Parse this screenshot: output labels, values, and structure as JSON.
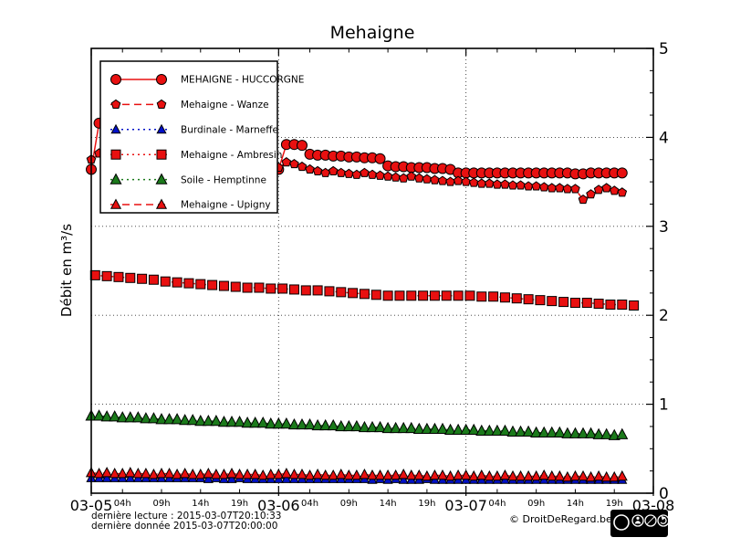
{
  "title": "Mehaigne",
  "ylabel": "Débit en m³/s",
  "footer": {
    "line1": "dernière lecture : 2015-03-07T20:10:33",
    "line2": "dernière donnée  2015-03-07T20:00:00",
    "copyright": "© DroitDeRegard.be",
    "cc_badge": "cc",
    "cc_labels": [
      "BY",
      "NC",
      "SA"
    ]
  },
  "chart_data": {
    "type": "line",
    "title": "Mehaigne",
    "ylabel": "Débit en m³/s",
    "ylim": [
      0,
      5
    ],
    "xlim_hours": [
      0,
      72
    ],
    "x_origin": "2015-03-05T00:00",
    "grid": {
      "h_values": [
        1,
        2,
        3,
        4
      ],
      "v_hours": [
        24,
        48
      ]
    },
    "y_ticks": [
      {
        "v": 0,
        "label": "0"
      },
      {
        "v": 1,
        "label": "1"
      },
      {
        "v": 2,
        "label": "2"
      },
      {
        "v": 3,
        "label": "3"
      },
      {
        "v": 4,
        "label": "4"
      },
      {
        "v": 5,
        "label": "5"
      }
    ],
    "y_minor_step": 0.25,
    "x_day_ticks": [
      {
        "t": 0,
        "label": "03-05"
      },
      {
        "t": 24,
        "label": "03-06"
      },
      {
        "t": 48,
        "label": "03-07"
      },
      {
        "t": 72,
        "label": "03-08"
      }
    ],
    "x_hour_ticks": [
      {
        "t": 4,
        "label": "04h"
      },
      {
        "t": 9,
        "label": "09h"
      },
      {
        "t": 14,
        "label": "14h"
      },
      {
        "t": 19,
        "label": "19h"
      },
      {
        "t": 28,
        "label": "04h"
      },
      {
        "t": 33,
        "label": "09h"
      },
      {
        "t": 38,
        "label": "14h"
      },
      {
        "t": 43,
        "label": "19h"
      },
      {
        "t": 52,
        "label": "04h"
      },
      {
        "t": 57,
        "label": "09h"
      },
      {
        "t": 62,
        "label": "14h"
      },
      {
        "t": 67,
        "label": "19h"
      }
    ],
    "legend_position": "upper left",
    "series": [
      {
        "name": "MEHAIGNE - HUCCORGNE",
        "color": "#e81010",
        "line": "solid",
        "marker": "circle",
        "marker_size": 5.5,
        "hours_start": 0,
        "hours_step": 1,
        "values": [
          3.64,
          4.16,
          4.0,
          3.9,
          3.88,
          3.87,
          3.86,
          3.85,
          3.84,
          3.83,
          3.82,
          3.81,
          3.8,
          3.79,
          3.78,
          3.77,
          3.76,
          3.75,
          3.74,
          3.73,
          3.72,
          3.71,
          3.7,
          3.68,
          3.64,
          3.92,
          3.92,
          3.91,
          3.81,
          3.8,
          3.8,
          3.79,
          3.79,
          3.78,
          3.78,
          3.77,
          3.77,
          3.76,
          3.68,
          3.67,
          3.67,
          3.66,
          3.66,
          3.66,
          3.65,
          3.65,
          3.64,
          3.6,
          3.6,
          3.6,
          3.6,
          3.6,
          3.6,
          3.6,
          3.6,
          3.6,
          3.6,
          3.6,
          3.6,
          3.6,
          3.6,
          3.6,
          3.59,
          3.59,
          3.6,
          3.6,
          3.6,
          3.6,
          3.6
        ]
      },
      {
        "name": "Mehaigne - Wanze",
        "color": "#e81010",
        "line": "dashed",
        "marker": "pentagon",
        "marker_size": 5,
        "hours_start": 0,
        "hours_step": 1,
        "values": [
          3.75,
          3.82,
          3.78,
          3.76,
          3.75,
          3.74,
          3.74,
          3.73,
          3.73,
          3.72,
          3.72,
          3.71,
          3.71,
          3.7,
          3.7,
          3.7,
          3.69,
          3.69,
          3.68,
          3.68,
          3.68,
          3.67,
          3.67,
          3.67,
          3.66,
          3.72,
          3.7,
          3.67,
          3.64,
          3.62,
          3.6,
          3.62,
          3.6,
          3.59,
          3.58,
          3.6,
          3.58,
          3.57,
          3.56,
          3.55,
          3.54,
          3.56,
          3.54,
          3.53,
          3.52,
          3.51,
          3.5,
          3.51,
          3.5,
          3.49,
          3.48,
          3.48,
          3.47,
          3.47,
          3.46,
          3.46,
          3.45,
          3.45,
          3.44,
          3.43,
          3.43,
          3.42,
          3.42,
          3.3,
          3.36,
          3.41,
          3.43,
          3.4,
          3.38
        ]
      },
      {
        "name": "Burdinale - Marneffe",
        "color": "#0010c8",
        "line": "dotted",
        "marker": "triangle",
        "marker_size": 5,
        "hours_start": 0,
        "hours_step": 1,
        "values": [
          0.17,
          0.17,
          0.17,
          0.17,
          0.17,
          0.17,
          0.17,
          0.17,
          0.17,
          0.17,
          0.17,
          0.17,
          0.17,
          0.17,
          0.17,
          0.16,
          0.17,
          0.16,
          0.16,
          0.17,
          0.16,
          0.16,
          0.16,
          0.16,
          0.16,
          0.16,
          0.16,
          0.16,
          0.16,
          0.16,
          0.16,
          0.16,
          0.16,
          0.16,
          0.16,
          0.16,
          0.15,
          0.16,
          0.15,
          0.16,
          0.15,
          0.15,
          0.15,
          0.16,
          0.15,
          0.15,
          0.15,
          0.15,
          0.15,
          0.15,
          0.15,
          0.15,
          0.15,
          0.15,
          0.15,
          0.15,
          0.15,
          0.15,
          0.15,
          0.15,
          0.15,
          0.15,
          0.15,
          0.15,
          0.15,
          0.15,
          0.15,
          0.15,
          0.15
        ]
      },
      {
        "name": "Mehaigne - Ambresin",
        "color": "#e81010",
        "line": "dotted",
        "marker": "square",
        "marker_size": 5,
        "hours_start": 0.5,
        "hours_step": 1.5,
        "values": [
          2.45,
          2.44,
          2.43,
          2.42,
          2.41,
          2.4,
          2.38,
          2.37,
          2.36,
          2.35,
          2.34,
          2.33,
          2.32,
          2.31,
          2.31,
          2.3,
          2.3,
          2.29,
          2.28,
          2.28,
          2.27,
          2.26,
          2.25,
          2.24,
          2.23,
          2.22,
          2.22,
          2.22,
          2.22,
          2.22,
          2.22,
          2.22,
          2.22,
          2.21,
          2.21,
          2.2,
          2.19,
          2.18,
          2.17,
          2.16,
          2.15,
          2.14,
          2.14,
          2.13,
          2.12,
          2.12,
          2.11
        ]
      },
      {
        "name": "Soile - Hemptinne",
        "color": "#1b7a1b",
        "line": "dotted",
        "marker": "triangle",
        "marker_size": 6,
        "hours_start": 0,
        "hours_step": 1,
        "values": [
          0.87,
          0.87,
          0.86,
          0.86,
          0.85,
          0.85,
          0.85,
          0.84,
          0.84,
          0.83,
          0.83,
          0.83,
          0.82,
          0.82,
          0.81,
          0.81,
          0.81,
          0.8,
          0.8,
          0.8,
          0.79,
          0.79,
          0.79,
          0.78,
          0.78,
          0.78,
          0.77,
          0.77,
          0.77,
          0.76,
          0.76,
          0.76,
          0.75,
          0.75,
          0.75,
          0.74,
          0.74,
          0.74,
          0.73,
          0.73,
          0.73,
          0.73,
          0.72,
          0.72,
          0.72,
          0.72,
          0.71,
          0.71,
          0.71,
          0.71,
          0.7,
          0.7,
          0.7,
          0.7,
          0.69,
          0.69,
          0.69,
          0.68,
          0.68,
          0.68,
          0.68,
          0.67,
          0.67,
          0.67,
          0.67,
          0.66,
          0.66,
          0.65,
          0.66
        ]
      },
      {
        "name": "Mehaigne - Upigny",
        "color": "#e81010",
        "line": "dashed",
        "marker": "triangle",
        "marker_size": 5.5,
        "hours_start": 0,
        "hours_step": 1,
        "values": [
          0.23,
          0.22,
          0.23,
          0.22,
          0.22,
          0.23,
          0.22,
          0.22,
          0.21,
          0.22,
          0.22,
          0.21,
          0.22,
          0.21,
          0.21,
          0.22,
          0.21,
          0.21,
          0.22,
          0.21,
          0.21,
          0.21,
          0.2,
          0.21,
          0.21,
          0.22,
          0.21,
          0.21,
          0.2,
          0.21,
          0.2,
          0.2,
          0.21,
          0.2,
          0.2,
          0.21,
          0.2,
          0.2,
          0.2,
          0.2,
          0.21,
          0.2,
          0.2,
          0.19,
          0.2,
          0.2,
          0.19,
          0.2,
          0.2,
          0.19,
          0.2,
          0.19,
          0.19,
          0.2,
          0.19,
          0.19,
          0.19,
          0.19,
          0.2,
          0.19,
          0.19,
          0.18,
          0.19,
          0.19,
          0.18,
          0.19,
          0.18,
          0.18,
          0.19
        ]
      }
    ]
  }
}
